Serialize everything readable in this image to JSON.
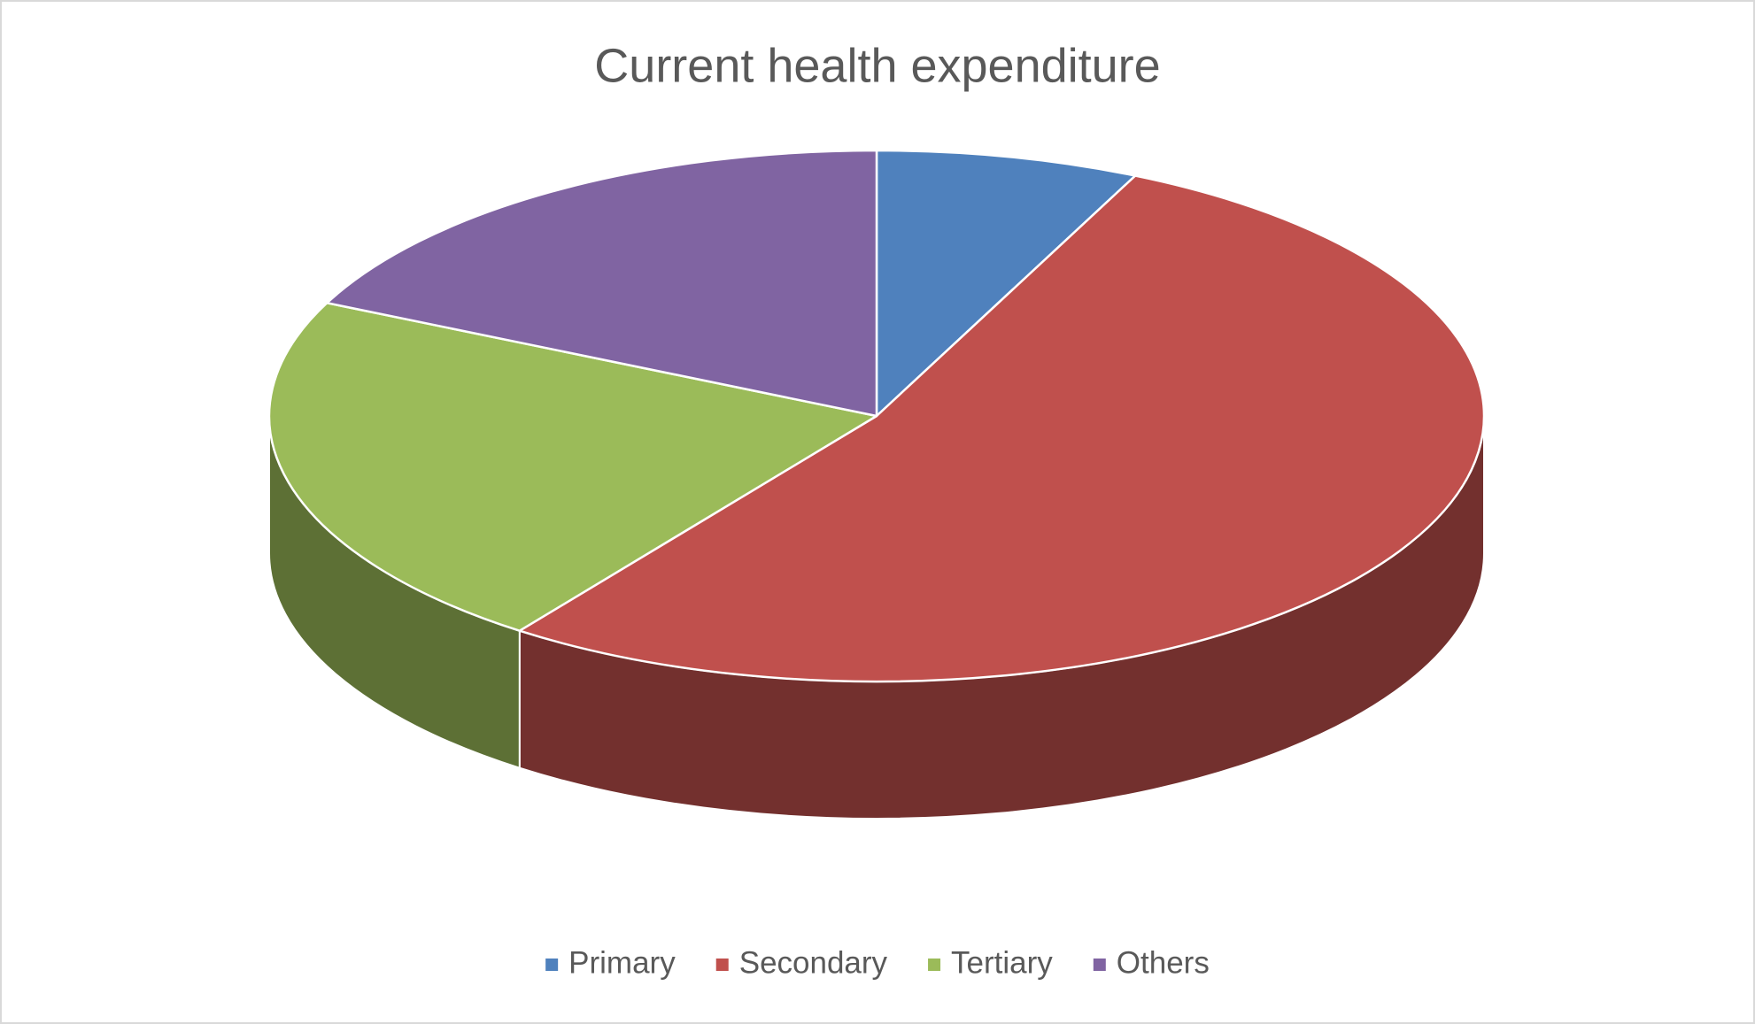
{
  "chart_data": {
    "type": "pie3d",
    "title": "Current health expenditure",
    "categories": [
      "Primary",
      "Secondary",
      "Tertiary",
      "Others"
    ],
    "values": [
      7,
      53,
      22,
      18
    ],
    "colors": [
      "#4f81bd",
      "#c0504d",
      "#9bbb59",
      "#8064a2"
    ],
    "legend": "bottom"
  }
}
